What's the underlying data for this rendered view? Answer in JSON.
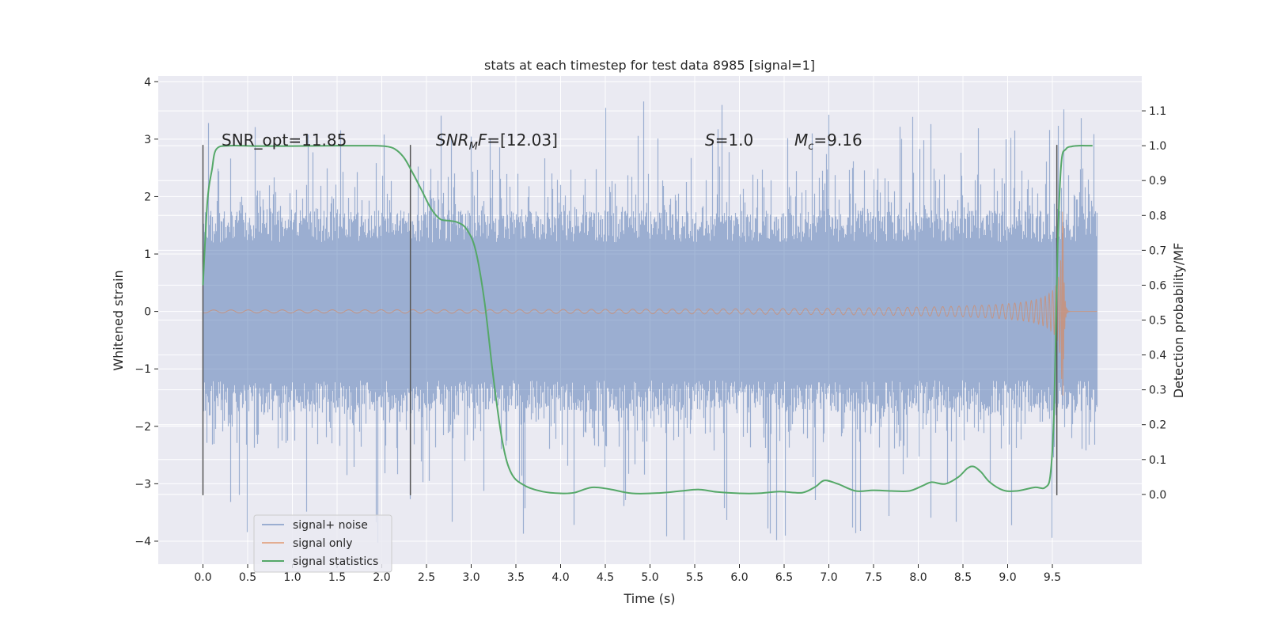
{
  "chart_data": {
    "type": "line",
    "title": "stats at each timestep for test data 8985 [signal=1]",
    "xlabel": "Time (s)",
    "ylabel": "Whitened strain",
    "ylabel_right": "Detection probability/MF",
    "xlim": [
      -0.5,
      10.5
    ],
    "ylim": [
      -4.4,
      4.1
    ],
    "ylim_right": [
      -0.2,
      1.2
    ],
    "x_ticks": [
      "0.0",
      "0.5",
      "1.0",
      "1.5",
      "2.0",
      "2.5",
      "3.0",
      "3.5",
      "4.0",
      "4.5",
      "5.0",
      "5.5",
      "6.0",
      "6.5",
      "7.0",
      "7.5",
      "8.0",
      "8.5",
      "9.0",
      "9.5"
    ],
    "y_ticks_left": [
      "−4",
      "−3",
      "−2",
      "−1",
      "0",
      "1",
      "2",
      "3",
      "4"
    ],
    "y_ticks_right": [
      "0.0",
      "0.1",
      "0.2",
      "0.3",
      "0.4",
      "0.5",
      "0.6",
      "0.7",
      "0.8",
      "0.9",
      "1.0",
      "1.1"
    ],
    "grid": true,
    "legend_position": "lower-left",
    "annotations": [
      {
        "id": "snr-opt",
        "text": "SNR_opt=11.85",
        "x": 0.2,
        "y": 3.0
      },
      {
        "id": "snr-mf",
        "text_italic": "SNR",
        "text_sub": "M",
        "text_italic2": "F",
        "text_rest": "=[12.03]",
        "x": 2.6,
        "y": 3.0
      },
      {
        "id": "s-value",
        "text_italic": "S",
        "text_rest": "=1.0",
        "x": 5.6,
        "y": 3.0
      },
      {
        "id": "mc-value",
        "text_italic": "M",
        "text_sub": "c",
        "text_rest": "=9.16",
        "x": 6.6,
        "y": 3.0
      }
    ],
    "vertical_markers": [
      {
        "x": 0.0,
        "ymin": -3.2,
        "ymax": 2.9
      },
      {
        "x": 2.32,
        "ymin": -3.2,
        "ymax": 2.9
      },
      {
        "x": 9.55,
        "ymin": -3.2,
        "ymax": 2.9
      }
    ],
    "series": [
      {
        "name": "signal+ noise",
        "color": "#4c72b0",
        "kind": "noise",
        "x_range": [
          0.0,
          10.0
        ],
        "body_amplitude": 1.6,
        "spike_max": 3.7,
        "spike_min": -4.05
      },
      {
        "name": "signal only",
        "color": "#dd8452",
        "kind": "chirp",
        "x_range": [
          0.0,
          10.0
        ],
        "merger_time": 9.62,
        "peak_amplitude": 1.85
      },
      {
        "name": "signal statistics",
        "color": "#55a868",
        "kind": "curve",
        "x": [
          0.0,
          0.05,
          0.1,
          0.15,
          0.3,
          0.6,
          1.0,
          1.5,
          1.9,
          2.05,
          2.15,
          2.25,
          2.35,
          2.45,
          2.55,
          2.65,
          2.75,
          2.85,
          2.95,
          3.05,
          3.15,
          3.25,
          3.35,
          3.45,
          3.6,
          3.8,
          4.0,
          4.15,
          4.35,
          4.55,
          4.8,
          5.1,
          5.35,
          5.55,
          5.75,
          6.0,
          6.2,
          6.45,
          6.7,
          6.85,
          6.95,
          7.1,
          7.3,
          7.5,
          7.7,
          7.9,
          8.05,
          8.15,
          8.3,
          8.45,
          8.55,
          8.62,
          8.7,
          8.8,
          8.95,
          9.1,
          9.3,
          9.42,
          9.48,
          9.52,
          9.56,
          9.6,
          9.65,
          9.72,
          9.8,
          9.9,
          9.95
        ],
        "y": [
          0.6,
          0.84,
          0.93,
          0.99,
          1.0,
          0.999,
          0.999,
          1.0,
          1.0,
          0.998,
          0.99,
          0.965,
          0.92,
          0.87,
          0.82,
          0.79,
          0.785,
          0.78,
          0.76,
          0.7,
          0.55,
          0.33,
          0.15,
          0.06,
          0.025,
          0.008,
          0.003,
          0.005,
          0.02,
          0.015,
          0.003,
          0.004,
          0.01,
          0.014,
          0.007,
          0.003,
          0.003,
          0.008,
          0.005,
          0.022,
          0.04,
          0.03,
          0.01,
          0.012,
          0.01,
          0.01,
          0.025,
          0.035,
          0.03,
          0.05,
          0.075,
          0.08,
          0.065,
          0.035,
          0.012,
          0.01,
          0.02,
          0.02,
          0.06,
          0.25,
          0.72,
          0.95,
          0.99,
          0.998,
          1.0,
          1.0,
          1.0
        ]
      }
    ]
  }
}
